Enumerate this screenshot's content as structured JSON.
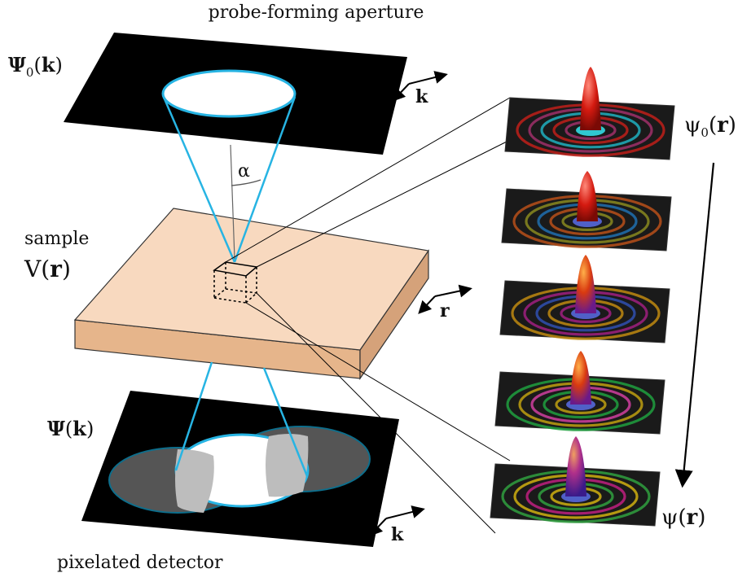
{
  "labels": {
    "aperture_title": "probe-forming aperture",
    "psi0_k": {
      "sym": "Ψ",
      "sub": "0",
      "open": "(",
      "arg": "k",
      "close": ")"
    },
    "k_top": "k",
    "alpha": "α",
    "sample_word": "sample",
    "v_r": {
      "sym": "V",
      "open": "(",
      "arg": "r",
      "close": ")"
    },
    "r_axis": "r",
    "psi_k": {
      "sym": "Ψ",
      "open": "(",
      "arg": "k",
      "close": ")"
    },
    "k_bottom": "k",
    "detector_title": "pixelated detector",
    "small_psi0_r": {
      "sym": "ψ",
      "sub": "0",
      "open": "(",
      "arg": "r",
      "close": ")"
    },
    "small_psi_r": {
      "sym": "ψ",
      "open": "(",
      "arg": "r",
      "close": ")"
    }
  },
  "colors": {
    "beam": "#27b4e3",
    "sample_top": "#f8d9bf",
    "sample_side": "#e6b58b",
    "plane": "#000000",
    "disc_fill": "#ffffff",
    "disc_shadow": "#555555",
    "overlap": "#bdbdbd"
  },
  "wave_panels": [
    {
      "name": "wave-panel-1"
    },
    {
      "name": "wave-panel-2"
    },
    {
      "name": "wave-panel-3"
    },
    {
      "name": "wave-panel-4"
    },
    {
      "name": "wave-panel-5"
    }
  ]
}
